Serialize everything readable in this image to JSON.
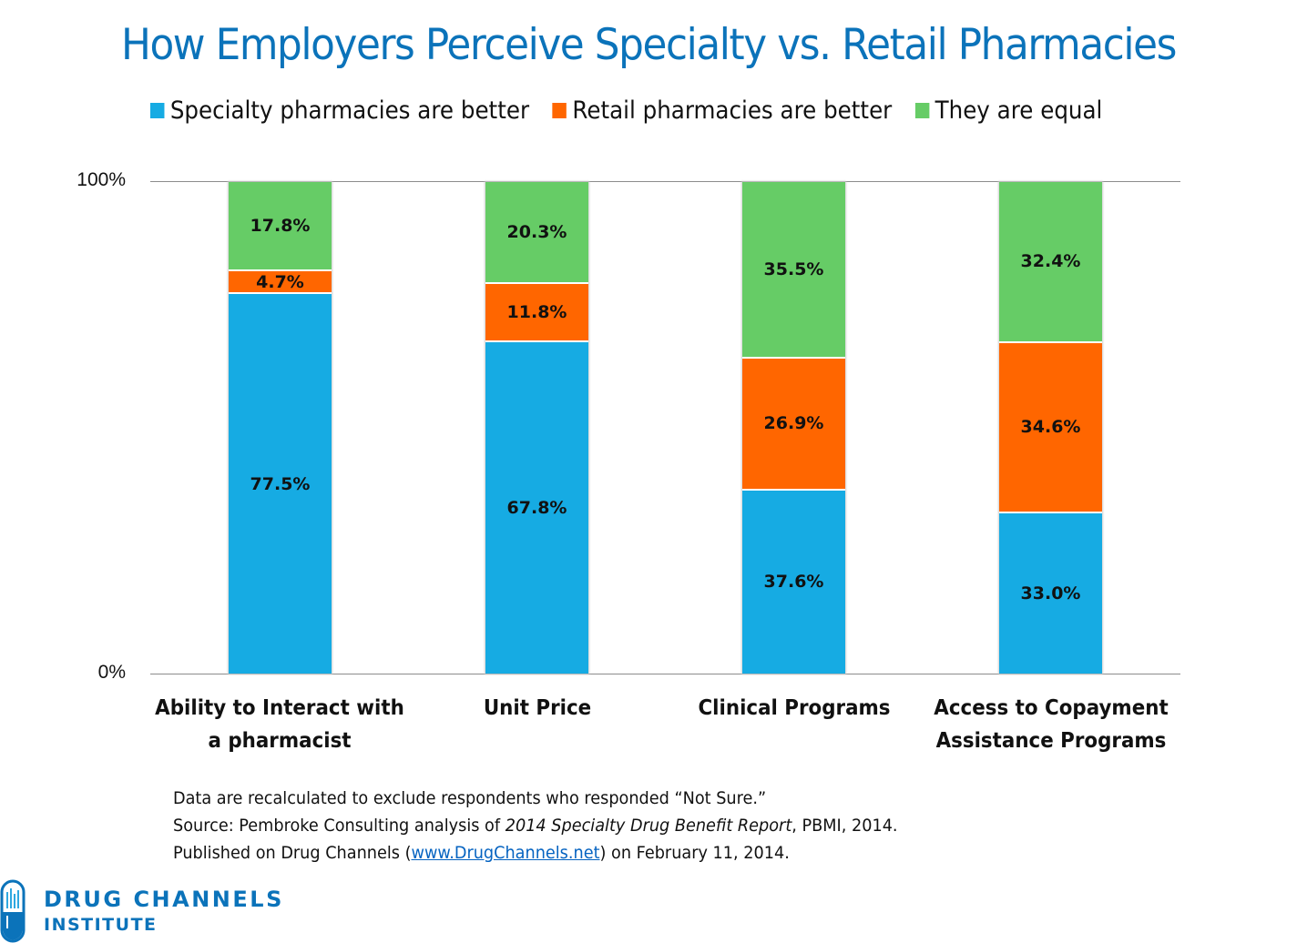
{
  "title": "How Employers Perceive Specialty vs. Retail Pharmacies",
  "legend": [
    {
      "label": "Specialty pharmacies are better",
      "color": "#16ABE3"
    },
    {
      "label": "Retail pharmacies are better",
      "color": "#FF6600"
    },
    {
      "label": "They are equal",
      "color": "#66CC66"
    }
  ],
  "axis": {
    "top_label": "100%",
    "bottom_label": "0%"
  },
  "chart_data": {
    "type": "bar",
    "stacked": true,
    "title": "How Employers Perceive Specialty vs. Retail Pharmacies",
    "categories": [
      "Ability to Interact with a pharmacist",
      "Unit Price",
      "Clinical Programs",
      "Access to Copayment Assistance Programs"
    ],
    "series": [
      {
        "name": "Specialty pharmacies are better",
        "color": "#16ABE3",
        "values": [
          77.5,
          67.8,
          37.6,
          33.0
        ],
        "labels": [
          "77.5%",
          "67.8%",
          "37.6%",
          "33.0%"
        ]
      },
      {
        "name": "Retail pharmacies are better",
        "color": "#FF6600",
        "values": [
          4.7,
          11.8,
          26.9,
          34.6
        ],
        "labels": [
          "4.7%",
          "11.8%",
          "26.9%",
          "34.6%"
        ]
      },
      {
        "name": "They are equal",
        "color": "#66CC66",
        "values": [
          17.8,
          20.3,
          35.5,
          32.4
        ],
        "labels": [
          "17.8%",
          "20.3%",
          "35.5%",
          "32.4%"
        ]
      }
    ],
    "xlabel": "",
    "ylabel": "",
    "ylim": [
      0,
      100
    ],
    "yticks": [
      "0%",
      "100%"
    ],
    "grid": false,
    "legend_position": "top"
  },
  "category_labels": [
    [
      "Ability to Interact with",
      "a pharmacist"
    ],
    [
      "Unit Price",
      ""
    ],
    [
      "Clinical Programs",
      ""
    ],
    [
      "Access to Copayment",
      "Assistance Programs"
    ]
  ],
  "notes": {
    "line1": "Data are recalculated to exclude respondents who responded “Not Sure.”",
    "line2_prefix": "Source: Pembroke Consulting analysis of ",
    "line2_italic": "2014 Specialty Drug Benefit Report",
    "line2_suffix": ", PBMI, 2014.",
    "line3_prefix": "Published on Drug Channels (",
    "line3_link": "www.DrugChannels.net",
    "line3_suffix": ") on February 11, 2014."
  },
  "logo": {
    "line1": "DRUG CHANNELS",
    "line2": "INSTITUTE",
    "color": "#0B73BA"
  }
}
